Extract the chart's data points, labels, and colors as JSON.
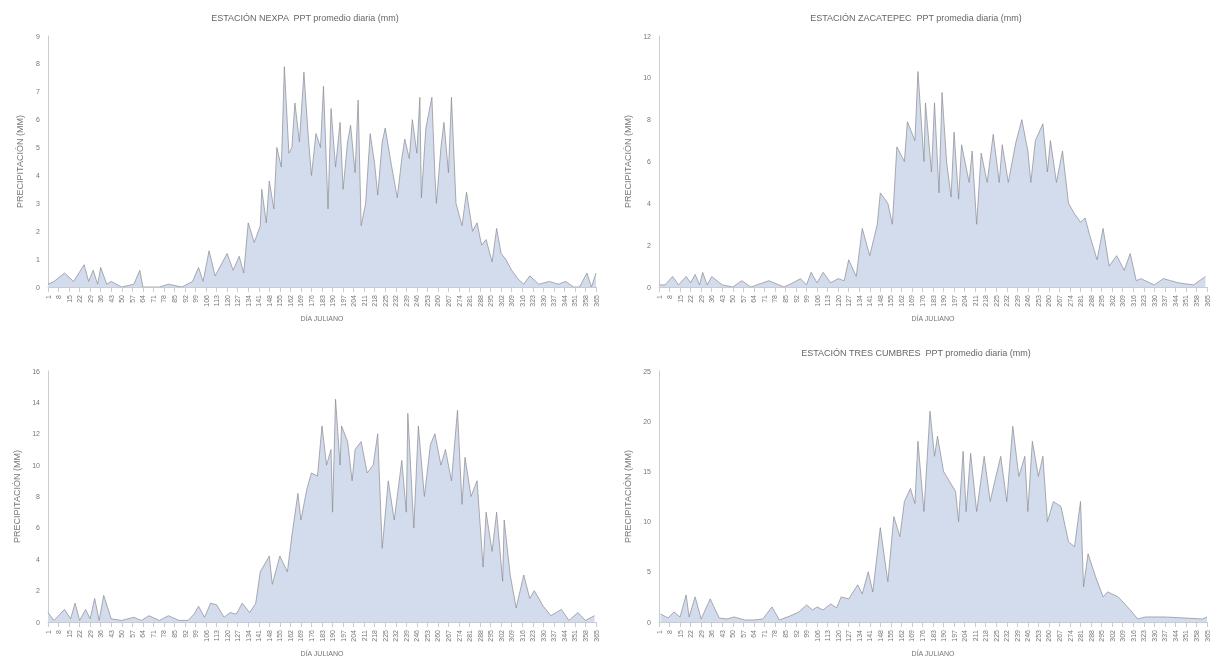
{
  "chart_data": [
    {
      "type": "area",
      "title": "ESTACIÓN NEXPA  PPT promedio diaria (mm)",
      "xlabel": "DÍA JULIANO",
      "ylabel": "PRECIPITACIÓN (MM)",
      "color": "#8a8a92",
      "marker": "none",
      "grid": false,
      "x": [
        1,
        5,
        12,
        18,
        25,
        28,
        31,
        34,
        36,
        40,
        43,
        50,
        58,
        62,
        64,
        75,
        81,
        90,
        97,
        101,
        104,
        108,
        112,
        120,
        124,
        128,
        131,
        134,
        138,
        142,
        143,
        146,
        148,
        151,
        153,
        156,
        158,
        161,
        163,
        165,
        168,
        171,
        174,
        176,
        179,
        182,
        184,
        187,
        189,
        192,
        195,
        197,
        200,
        202,
        205,
        207,
        209,
        212,
        215,
        218,
        220,
        223,
        225,
        229,
        233,
        236,
        238,
        241,
        243,
        246,
        248,
        249,
        252,
        256,
        258,
        259,
        262,
        264,
        267,
        269,
        272,
        276,
        279,
        283,
        286,
        289,
        292,
        296,
        299,
        302,
        305,
        309,
        313,
        317,
        321,
        327,
        334,
        340,
        345,
        350,
        354,
        359,
        362,
        365
      ],
      "values": [
        0.1,
        0.2,
        0.5,
        0.2,
        0.8,
        0.2,
        0.6,
        0.1,
        0.7,
        0.1,
        0.2,
        0.0,
        0.1,
        0.6,
        0.0,
        0.0,
        0.1,
        0.0,
        0.2,
        0.7,
        0.2,
        1.3,
        0.4,
        1.2,
        0.6,
        1.1,
        0.5,
        2.3,
        1.6,
        2.2,
        3.5,
        2.3,
        3.8,
        2.8,
        5.0,
        4.3,
        7.9,
        4.8,
        5.0,
        6.6,
        5.2,
        7.7,
        5.3,
        4.0,
        5.5,
        5.0,
        7.2,
        2.8,
        6.4,
        4.3,
        5.9,
        3.5,
        5.2,
        5.8,
        4.1,
        6.7,
        2.2,
        3.0,
        5.5,
        4.4,
        3.3,
        5.2,
        5.7,
        4.4,
        3.2,
        4.6,
        5.3,
        4.6,
        6.0,
        4.8,
        6.8,
        3.2,
        5.7,
        6.8,
        4.0,
        3.0,
        5.0,
        5.9,
        4.1,
        6.8,
        3.0,
        2.2,
        3.4,
        2.0,
        2.3,
        1.5,
        1.7,
        0.9,
        2.1,
        1.2,
        1.0,
        0.6,
        0.3,
        0.1,
        0.4,
        0.1,
        0.2,
        0.1,
        0.2,
        0.0,
        0.0,
        0.5,
        0.0,
        0.5
      ],
      "xlim": [
        1,
        365
      ],
      "xticks": [
        1,
        8,
        15,
        22,
        29,
        36,
        43,
        50,
        57,
        64,
        71,
        78,
        85,
        92,
        99,
        106,
        113,
        120,
        127,
        134,
        141,
        148,
        155,
        162,
        169,
        176,
        183,
        190,
        197,
        204,
        211,
        218,
        225,
        232,
        239,
        246,
        253,
        260,
        267,
        274,
        281,
        288,
        295,
        302,
        309,
        316,
        323,
        330,
        337,
        344,
        351,
        358,
        365
      ],
      "ylim": [
        0,
        9
      ],
      "yticks": [
        0,
        1,
        2,
        3,
        4,
        5,
        6,
        7,
        8,
        9
      ]
    },
    {
      "type": "area",
      "title": "ESTACIÓN ZACATEPEC  PPT promedia diaria (mm)",
      "xlabel": "DÍA JULIANO",
      "ylabel": "PRECIPITACIÓN (MM)",
      "color": "#8a8a92",
      "marker": "none",
      "grid": false,
      "x": [
        1,
        5,
        10,
        14,
        19,
        22,
        25,
        28,
        30,
        33,
        36,
        43,
        50,
        56,
        62,
        74,
        84,
        90,
        95,
        99,
        102,
        106,
        110,
        115,
        120,
        124,
        127,
        132,
        136,
        141,
        146,
        148,
        153,
        156,
        159,
        164,
        166,
        171,
        173,
        177,
        178,
        182,
        184,
        187,
        189,
        192,
        195,
        197,
        200,
        202,
        207,
        209,
        212,
        215,
        219,
        223,
        227,
        229,
        233,
        238,
        242,
        246,
        248,
        251,
        256,
        259,
        261,
        265,
        269,
        273,
        277,
        281,
        284,
        287,
        292,
        296,
        300,
        305,
        310,
        314,
        318,
        321,
        330,
        336,
        346,
        356,
        364
      ],
      "values": [
        0.1,
        0.1,
        0.5,
        0.1,
        0.5,
        0.2,
        0.6,
        0.1,
        0.7,
        0.1,
        0.5,
        0.1,
        0.0,
        0.3,
        0.0,
        0.3,
        0.0,
        0.2,
        0.4,
        0.1,
        0.7,
        0.2,
        0.7,
        0.2,
        0.4,
        0.3,
        1.3,
        0.5,
        2.8,
        1.5,
        3.0,
        4.5,
        4.0,
        3.0,
        6.7,
        6.0,
        7.9,
        7.0,
        10.3,
        6.0,
        8.8,
        5.5,
        8.8,
        4.5,
        9.3,
        6.0,
        4.3,
        7.4,
        4.2,
        6.8,
        5.0,
        6.5,
        3.0,
        6.4,
        5.0,
        7.3,
        5.0,
        6.8,
        5.0,
        6.9,
        8.0,
        6.5,
        5.0,
        7.0,
        7.8,
        5.5,
        7.0,
        5.0,
        6.5,
        4.0,
        3.5,
        3.1,
        3.3,
        2.5,
        1.3,
        2.8,
        1.0,
        1.5,
        0.8,
        1.6,
        0.3,
        0.4,
        0.1,
        0.4,
        0.2,
        0.1,
        0.5
      ],
      "xlim": [
        1,
        365
      ],
      "xticks": [
        1,
        8,
        15,
        22,
        29,
        36,
        43,
        50,
        57,
        64,
        71,
        78,
        85,
        92,
        99,
        106,
        113,
        120,
        127,
        134,
        141,
        148,
        155,
        162,
        169,
        176,
        183,
        190,
        197,
        204,
        211,
        218,
        225,
        232,
        239,
        246,
        253,
        260,
        267,
        274,
        281,
        288,
        295,
        302,
        309,
        316,
        323,
        330,
        337,
        344,
        351,
        358,
        365
      ],
      "ylim": [
        0,
        12
      ],
      "yticks": [
        0,
        2,
        4,
        6,
        8,
        10,
        12
      ]
    },
    {
      "type": "area",
      "xlabel": "DÍA JULIANO",
      "ylabel": "PRECIPITACIÓN (MM)",
      "color": "#8a8a92",
      "marker": "none",
      "grid": false,
      "x": [
        1,
        5,
        9,
        12,
        16,
        19,
        22,
        26,
        29,
        32,
        35,
        38,
        43,
        50,
        58,
        63,
        68,
        75,
        81,
        88,
        94,
        98,
        101,
        105,
        109,
        113,
        118,
        122,
        126,
        130,
        135,
        139,
        142,
        148,
        150,
        155,
        160,
        163,
        167,
        169,
        173,
        176,
        180,
        183,
        186,
        189,
        190,
        192,
        195,
        196,
        200,
        203,
        205,
        209,
        213,
        217,
        220,
        223,
        227,
        231,
        236,
        239,
        240,
        244,
        247,
        251,
        255,
        258,
        262,
        265,
        269,
        273,
        276,
        278,
        282,
        286,
        290,
        292,
        296,
        299,
        303,
        304,
        308,
        312,
        317,
        321,
        324,
        330,
        335,
        342,
        347,
        353,
        358,
        364
      ],
      "values": [
        0.6,
        0.1,
        0.5,
        0.8,
        0.2,
        1.2,
        0.1,
        0.8,
        0.2,
        1.5,
        0.1,
        1.7,
        0.2,
        0.1,
        0.3,
        0.1,
        0.4,
        0.1,
        0.4,
        0.1,
        0.1,
        0.5,
        1.0,
        0.3,
        1.2,
        1.1,
        0.3,
        0.6,
        0.5,
        1.2,
        0.6,
        1.2,
        3.2,
        4.2,
        2.4,
        4.2,
        3.2,
        5.5,
        8.2,
        6.5,
        8.5,
        9.5,
        9.3,
        12.5,
        10.0,
        11.0,
        7.0,
        14.2,
        10.0,
        12.5,
        11.5,
        9.0,
        11.0,
        11.5,
        9.5,
        10.0,
        12.0,
        4.7,
        9.0,
        6.5,
        10.3,
        7.0,
        13.3,
        6.0,
        12.5,
        8.0,
        11.3,
        12.0,
        10.0,
        11.0,
        9.0,
        13.5,
        7.5,
        10.5,
        8.0,
        9.0,
        3.5,
        7.0,
        4.5,
        7.0,
        2.6,
        6.5,
        3.0,
        0.9,
        3.0,
        1.5,
        2.0,
        1.0,
        0.4,
        0.8,
        0.1,
        0.6,
        0.1,
        0.4
      ],
      "xlim": [
        1,
        365
      ],
      "xticks": [
        1,
        8,
        15,
        22,
        29,
        36,
        43,
        50,
        57,
        64,
        71,
        78,
        85,
        92,
        99,
        106,
        113,
        120,
        127,
        134,
        141,
        148,
        155,
        162,
        169,
        176,
        183,
        190,
        197,
        204,
        211,
        218,
        225,
        232,
        239,
        246,
        253,
        260,
        267,
        274,
        281,
        288,
        295,
        302,
        309,
        316,
        323,
        330,
        337,
        344,
        351,
        358,
        365
      ],
      "ylim": [
        0,
        16
      ],
      "yticks": [
        0,
        2,
        4,
        6,
        8,
        10,
        12,
        14,
        16
      ]
    },
    {
      "type": "area",
      "title": "ESTACIÓN TRES CUMBRES  PPT promedio diaria (mm)",
      "xlabel": "DÍA JULIANO",
      "ylabel": "PRECIPITACIÓN (MM)",
      "color": "#8a8a92",
      "marker": "none",
      "grid": false,
      "x": [
        2,
        7,
        11,
        15,
        19,
        21,
        25,
        29,
        35,
        41,
        46,
        51,
        58,
        64,
        70,
        76,
        81,
        88,
        94,
        99,
        103,
        106,
        110,
        115,
        119,
        122,
        127,
        133,
        136,
        140,
        143,
        148,
        153,
        157,
        161,
        164,
        168,
        171,
        173,
        177,
        181,
        184,
        186,
        190,
        194,
        198,
        200,
        203,
        205,
        208,
        212,
        217,
        221,
        224,
        228,
        232,
        236,
        240,
        244,
        246,
        249,
        253,
        256,
        259,
        263,
        268,
        273,
        277,
        281,
        283,
        286,
        291,
        296,
        299,
        306,
        314,
        319,
        324,
        337,
        350,
        362,
        365
      ],
      "values": [
        0.8,
        0.4,
        1.0,
        0.5,
        2.7,
        0.5,
        2.5,
        0.3,
        2.3,
        0.4,
        0.3,
        0.5,
        0.2,
        0.2,
        0.3,
        1.5,
        0.2,
        0.6,
        1.0,
        1.7,
        1.2,
        1.5,
        1.2,
        1.8,
        1.4,
        2.5,
        2.3,
        3.7,
        2.8,
        5.0,
        3.0,
        9.4,
        4.0,
        10.5,
        8.5,
        12.0,
        13.3,
        11.8,
        18.0,
        11.0,
        21.0,
        16.5,
        18.5,
        15.0,
        14.0,
        13.0,
        10.0,
        17.0,
        11.0,
        16.8,
        11.0,
        16.5,
        12.0,
        14.0,
        16.5,
        12.0,
        19.5,
        14.5,
        16.5,
        11.0,
        18.0,
        14.5,
        16.5,
        10.0,
        12.0,
        11.5,
        8.0,
        7.5,
        12.0,
        3.5,
        6.8,
        4.5,
        2.5,
        3.0,
        2.5,
        1.2,
        0.3,
        0.5,
        0.5,
        0.4,
        0.3,
        0.5
      ],
      "xlim": [
        1,
        365
      ],
      "xticks": [
        1,
        8,
        15,
        22,
        29,
        36,
        43,
        50,
        57,
        64,
        71,
        78,
        85,
        92,
        99,
        106,
        113,
        120,
        127,
        134,
        141,
        148,
        155,
        162,
        169,
        176,
        183,
        190,
        197,
        204,
        211,
        218,
        225,
        232,
        239,
        246,
        253,
        260,
        267,
        274,
        281,
        288,
        295,
        302,
        309,
        316,
        323,
        330,
        337,
        344,
        351,
        358,
        365
      ],
      "ylim": [
        0,
        25
      ],
      "yticks": [
        0,
        5,
        10,
        15,
        20,
        25
      ]
    }
  ]
}
